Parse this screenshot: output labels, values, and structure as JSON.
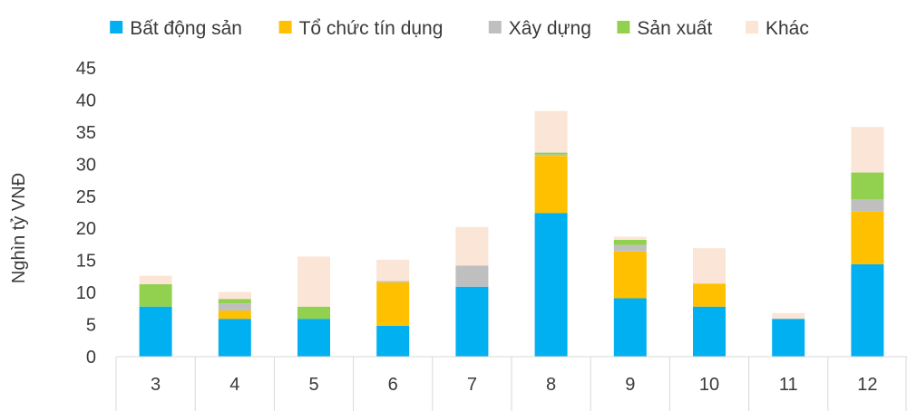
{
  "chart_data": {
    "type": "bar",
    "stacked": true,
    "categories": [
      "3",
      "4",
      "5",
      "6",
      "7",
      "8",
      "9",
      "10",
      "11",
      "12"
    ],
    "ylabel": "Nghìn tỷ VNĐ",
    "ylim": [
      0,
      45
    ],
    "yticks": [
      "0",
      "5",
      "10",
      "15",
      "20",
      "25",
      "30",
      "35",
      "40",
      "45"
    ],
    "legend_position": "top",
    "series": [
      {
        "name": "Bất động sản",
        "color": "#00b0f0",
        "values": [
          7.8,
          5.9,
          5.9,
          4.8,
          10.9,
          22.4,
          9.1,
          7.8,
          5.9,
          14.4
        ]
      },
      {
        "name": "Tổ chức tín dụng",
        "color": "#ffc000",
        "values": [
          0,
          1.3,
          0,
          6.8,
          0,
          8.9,
          7.3,
          3.6,
          0,
          8.2
        ]
      },
      {
        "name": "Xây dựng",
        "color": "#bfbfbf",
        "values": [
          0,
          1.1,
          0,
          0.2,
          3.3,
          0.2,
          1.0,
          0,
          0,
          1.9
        ]
      },
      {
        "name": "Sản xuất",
        "color": "#92d050",
        "values": [
          3.5,
          0.7,
          1.9,
          0,
          0,
          0.3,
          0.8,
          0,
          0,
          4.2
        ]
      },
      {
        "name": "Khác",
        "color": "#fbe5d6",
        "values": [
          1.3,
          1.1,
          7.8,
          3.3,
          6.0,
          6.5,
          0.5,
          5.5,
          0.9,
          7.1
        ]
      }
    ]
  }
}
